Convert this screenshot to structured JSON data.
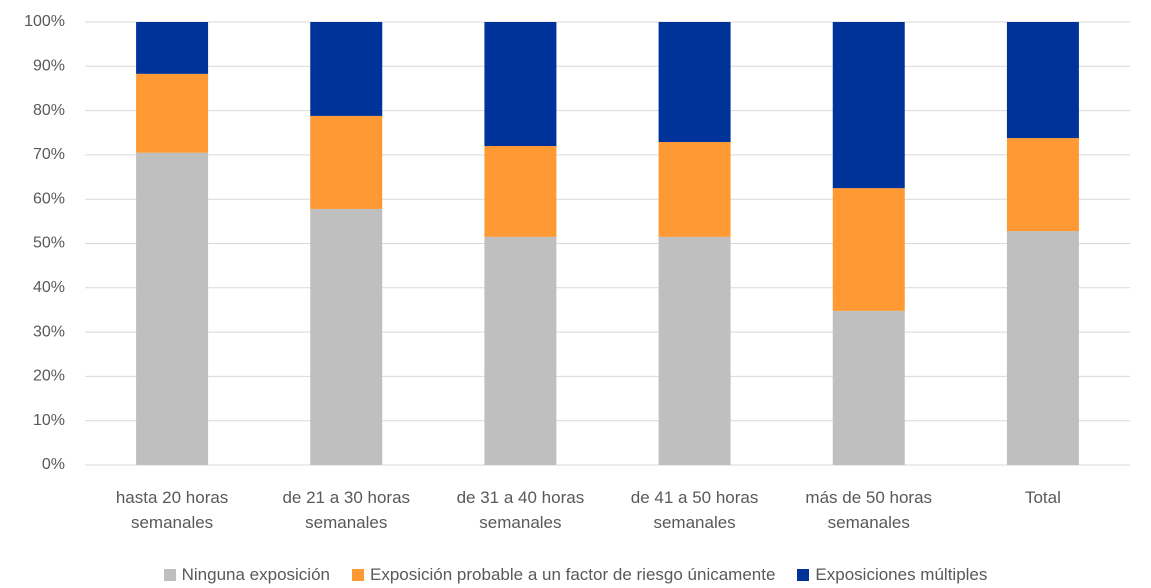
{
  "chart_data": {
    "type": "stacked_bar",
    "categories": [
      "hasta 20 horas semanales",
      "de 21 a 30 horas semanales",
      "de 31 a 40 horas semanales",
      "de 41 a 50 horas semanales",
      "más de 50 horas semanales",
      "Total"
    ],
    "series": [
      {
        "name": "Ninguna exposición",
        "color": "#bfbfbf",
        "values": [
          70.5,
          57.8,
          51.5,
          51.5,
          34.8,
          52.8
        ]
      },
      {
        "name": "Exposición probable a un factor de riesgo únicamente",
        "color": "#ff9933",
        "values": [
          17.8,
          21.0,
          20.5,
          21.4,
          27.7,
          21.0
        ]
      },
      {
        "name": "Exposiciones múltiples",
        "color": "#003399",
        "values": [
          11.7,
          21.2,
          28.0,
          27.1,
          37.5,
          26.2
        ]
      }
    ],
    "ylim": [
      0,
      100
    ],
    "yticks": [
      {
        "value": 0,
        "label": "0%"
      },
      {
        "value": 10,
        "label": "10%"
      },
      {
        "value": 20,
        "label": "20%"
      },
      {
        "value": 30,
        "label": "30%"
      },
      {
        "value": 40,
        "label": "40%"
      },
      {
        "value": 50,
        "label": "50%"
      },
      {
        "value": 60,
        "label": "60%"
      },
      {
        "value": 70,
        "label": "70%"
      },
      {
        "value": 80,
        "label": "80%"
      },
      {
        "value": 90,
        "label": "90%"
      },
      {
        "value": 100,
        "label": "100%"
      }
    ],
    "grid": true,
    "legend": "bottom"
  }
}
